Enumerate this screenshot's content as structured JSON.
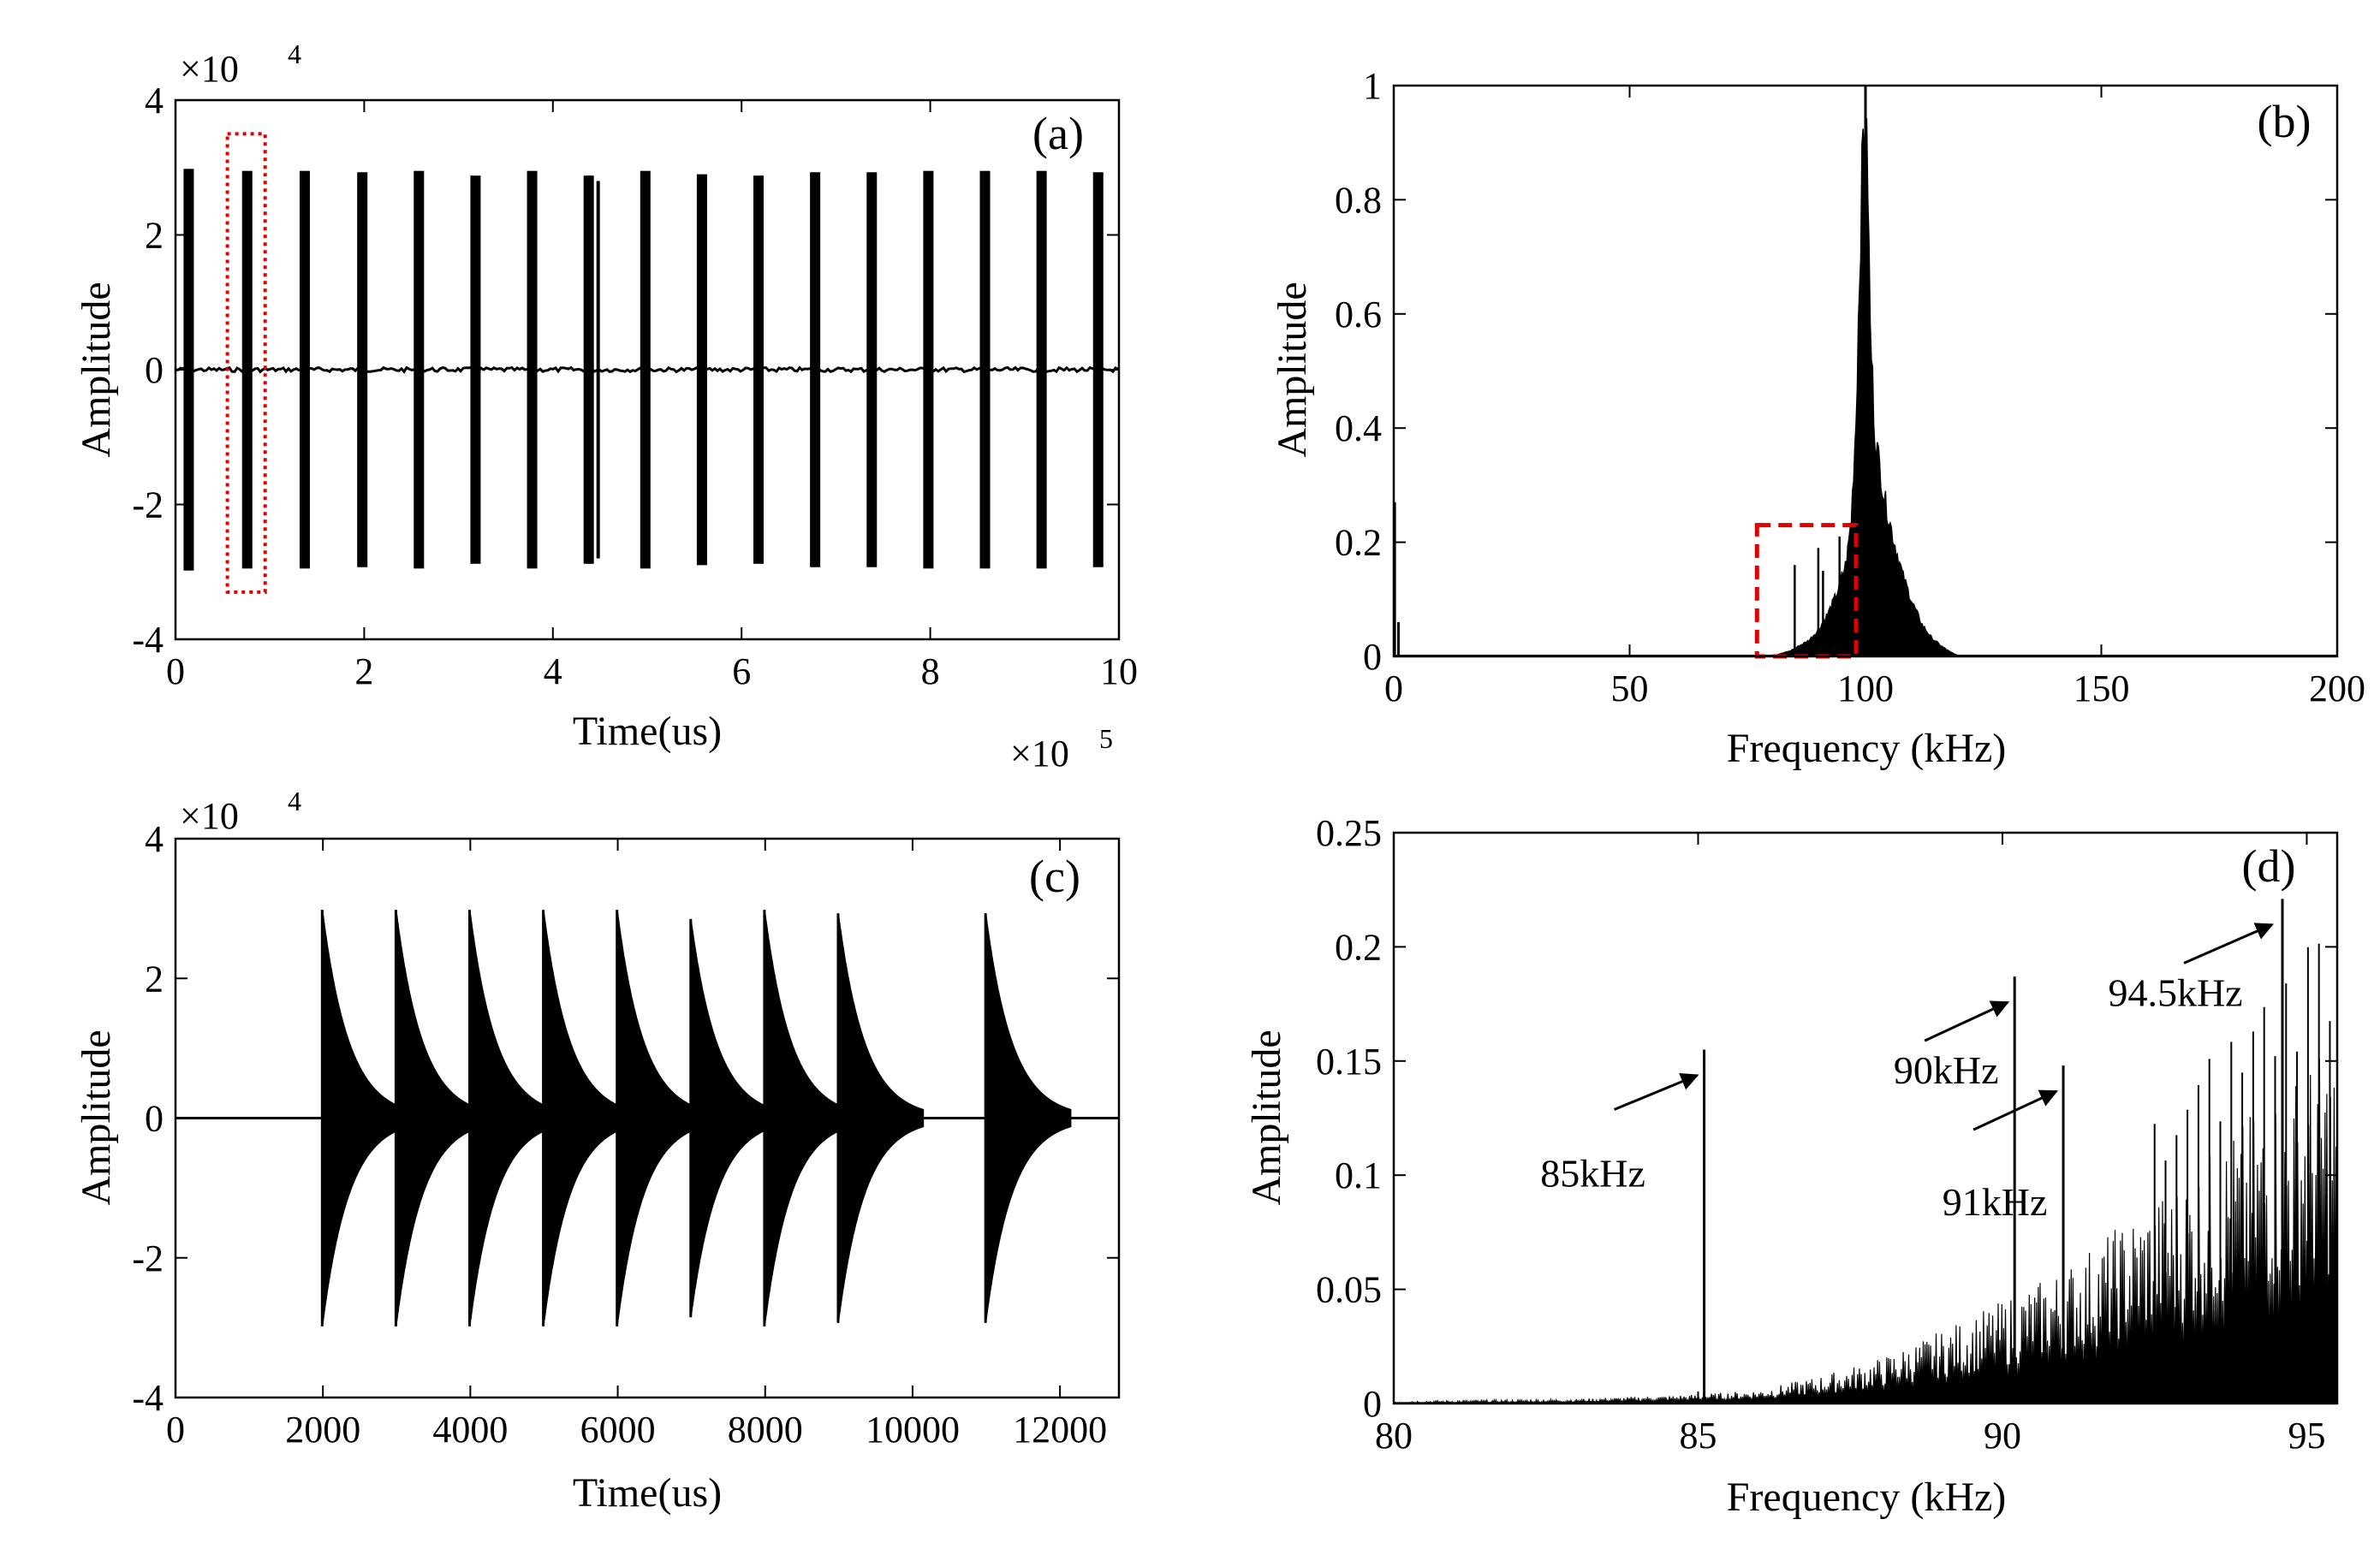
{
  "chart_data": [
    {
      "id": "a",
      "type": "line",
      "panel_label": "(a)",
      "xlabel": "Time(us)",
      "ylabel": "Amplitude",
      "x_multiplier": "×10",
      "x_multiplier_exp": "5",
      "y_multiplier": "×10",
      "y_multiplier_exp": "4",
      "xlim": [
        0,
        10
      ],
      "ylim": [
        -4,
        4
      ],
      "xticks": [
        0,
        2,
        4,
        6,
        8,
        10
      ],
      "yticks": [
        -4,
        -2,
        0,
        2,
        4
      ],
      "xtick_labels": [
        "0",
        "2",
        "4",
        "6",
        "8",
        "10"
      ],
      "ytick_labels": [
        "-4",
        "-2",
        "0",
        "2",
        "4"
      ],
      "bursts": [
        {
          "x": 0.14,
          "amp": 2.98
        },
        {
          "x": 0.76,
          "amp": 2.95
        },
        {
          "x": 1.37,
          "amp": 2.95
        },
        {
          "x": 1.98,
          "amp": 2.93
        },
        {
          "x": 2.58,
          "amp": 2.95
        },
        {
          "x": 3.18,
          "amp": 2.88
        },
        {
          "x": 3.78,
          "amp": 2.95
        },
        {
          "x": 4.38,
          "amp": 2.88
        },
        {
          "x": 4.48,
          "amp": 2.8
        },
        {
          "x": 4.98,
          "amp": 2.95
        },
        {
          "x": 5.58,
          "amp": 2.9
        },
        {
          "x": 6.18,
          "amp": 2.88
        },
        {
          "x": 6.78,
          "amp": 2.93
        },
        {
          "x": 7.38,
          "amp": 2.93
        },
        {
          "x": 7.98,
          "amp": 2.95
        },
        {
          "x": 8.58,
          "amp": 2.95
        },
        {
          "x": 9.18,
          "amp": 2.95
        },
        {
          "x": 9.78,
          "amp": 2.93
        }
      ],
      "highlight_box": {
        "x0": 0.55,
        "x1": 0.95,
        "y0": -3.3,
        "y1": 3.5,
        "color": "#e00000",
        "style": "dotted"
      }
    },
    {
      "id": "b",
      "type": "line",
      "panel_label": "(b)",
      "xlabel": "Frequency (kHz)",
      "ylabel": "Amplitude",
      "xlim": [
        0,
        200
      ],
      "ylim": [
        0,
        1
      ],
      "xticks": [
        0,
        50,
        100,
        150,
        200
      ],
      "yticks": [
        0,
        0.2,
        0.4,
        0.6,
        0.8,
        1
      ],
      "xtick_labels": [
        "0",
        "50",
        "100",
        "150",
        "200"
      ],
      "ytick_labels": [
        "0",
        "0.2",
        "0.4",
        "0.6",
        "0.8",
        "1"
      ],
      "spectrum_envelope": [
        [
          80,
          0.0
        ],
        [
          84,
          0.01
        ],
        [
          86,
          0.02
        ],
        [
          88,
          0.03
        ],
        [
          90,
          0.05
        ],
        [
          92,
          0.08
        ],
        [
          94,
          0.12
        ],
        [
          96,
          0.18
        ],
        [
          97,
          0.26
        ],
        [
          98,
          0.45
        ],
        [
          99,
          0.82
        ],
        [
          99.5,
          0.98
        ],
        [
          100,
          1.0
        ],
        [
          100.5,
          0.9
        ],
        [
          101,
          0.62
        ],
        [
          102,
          0.42
        ],
        [
          104,
          0.3
        ],
        [
          106,
          0.22
        ],
        [
          108,
          0.15
        ],
        [
          110,
          0.1
        ],
        [
          112,
          0.06
        ],
        [
          114,
          0.035
        ],
        [
          116,
          0.02
        ],
        [
          118,
          0.008
        ],
        [
          120,
          0.0
        ]
      ],
      "side_peaks": [
        [
          85,
          0.16
        ],
        [
          90,
          0.19
        ],
        [
          91,
          0.15
        ],
        [
          94.5,
          0.21
        ]
      ],
      "dc_peak": [
        [
          0.2,
          0.27
        ],
        [
          1.0,
          0.06
        ]
      ],
      "highlight_box": {
        "x0": 77,
        "x1": 98,
        "y0": 0.0,
        "y1": 0.23,
        "color": "#e00000",
        "style": "dashed"
      }
    },
    {
      "id": "c",
      "type": "line",
      "panel_label": "(c)",
      "xlabel": "Time(us)",
      "ylabel": "Amplitude",
      "y_multiplier": "×10",
      "y_multiplier_exp": "4",
      "xlim": [
        0,
        12800
      ],
      "ylim": [
        -4,
        4
      ],
      "xticks": [
        0,
        2000,
        4000,
        6000,
        8000,
        10000,
        12000
      ],
      "yticks": [
        -4,
        -2,
        0,
        2,
        4
      ],
      "xtick_labels": [
        "0",
        "2000",
        "4000",
        "6000",
        "8000",
        "10000",
        "12000"
      ],
      "ytick_labels": [
        "-4",
        "-2",
        "0",
        "2",
        "4"
      ],
      "pulses": [
        {
          "x": 1990,
          "amp": 2.98
        },
        {
          "x": 2990,
          "amp": 2.98
        },
        {
          "x": 3990,
          "amp": 2.98
        },
        {
          "x": 4990,
          "amp": 2.98
        },
        {
          "x": 5990,
          "amp": 2.98
        },
        {
          "x": 6990,
          "amp": 2.85
        },
        {
          "x": 7990,
          "amp": 2.98
        },
        {
          "x": 8990,
          "amp": 2.93
        },
        {
          "x": 10990,
          "amp": 2.93
        }
      ],
      "decay_us": 360
    },
    {
      "id": "d",
      "type": "line",
      "panel_label": "(d)",
      "xlabel": "Frequency (kHz)",
      "ylabel": "Amplitude",
      "xlim": [
        80,
        95.5
      ],
      "ylim": [
        0,
        0.25
      ],
      "xticks": [
        80,
        85,
        90,
        95
      ],
      "yticks": [
        0,
        0.05,
        0.1,
        0.15,
        0.2,
        0.25
      ],
      "xtick_labels": [
        "80",
        "85",
        "90",
        "95"
      ],
      "ytick_labels": [
        "0",
        "0.05",
        "0.1",
        "0.15",
        "0.2",
        "0.25"
      ],
      "noise_envelope": [
        [
          80,
          0.001
        ],
        [
          83,
          0.002
        ],
        [
          85,
          0.004
        ],
        [
          86,
          0.006
        ],
        [
          87,
          0.012
        ],
        [
          88,
          0.02
        ],
        [
          89,
          0.032
        ],
        [
          90,
          0.045
        ],
        [
          91,
          0.06
        ],
        [
          92,
          0.08
        ],
        [
          93,
          0.1
        ],
        [
          94,
          0.125
        ],
        [
          95,
          0.15
        ],
        [
          95.5,
          0.16
        ]
      ],
      "peaks": [
        {
          "freq": 85.1,
          "amp": 0.155,
          "label": "85kHz"
        },
        {
          "freq": 90.2,
          "amp": 0.187,
          "label": "90kHz"
        },
        {
          "freq": 91.0,
          "amp": 0.148,
          "label": "91kHz"
        },
        {
          "freq": 94.6,
          "amp": 0.221,
          "label": "94.5kHz"
        }
      ]
    }
  ]
}
